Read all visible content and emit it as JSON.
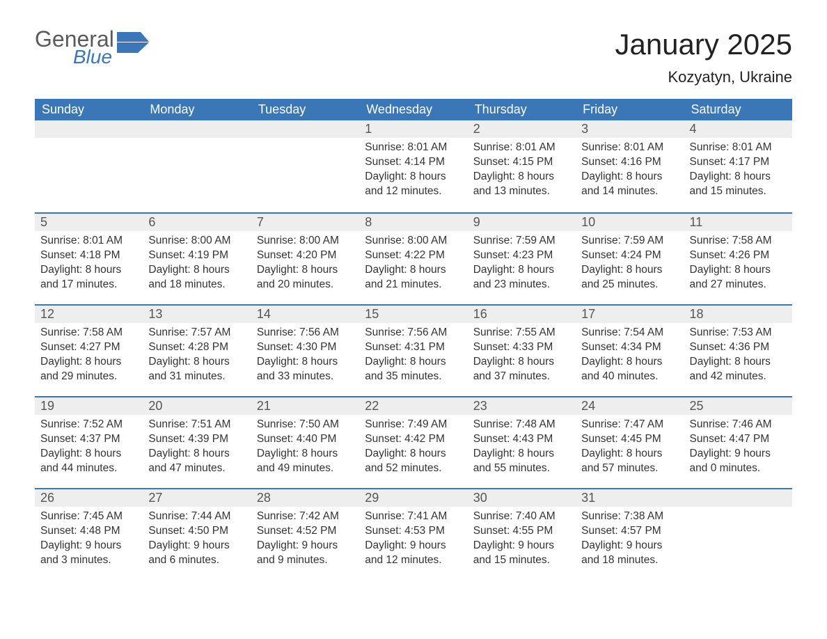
{
  "brand": {
    "word1": "General",
    "word2": "Blue",
    "accent_color": "#3b77b7",
    "text_color": "#5a5a5a"
  },
  "title": "January 2025",
  "location": "Kozyatyn, Ukraine",
  "header_bg": "#3b77b7",
  "header_fg": "#ffffff",
  "daynum_bg": "#eeeeee",
  "border_color": "#3b77b7",
  "body_color": "#333333",
  "dow": [
    "Sunday",
    "Monday",
    "Tuesday",
    "Wednesday",
    "Thursday",
    "Friday",
    "Saturday"
  ],
  "weeks": [
    [
      null,
      null,
      null,
      {
        "n": "1",
        "sunrise": "8:01 AM",
        "sunset": "4:14 PM",
        "dlh": "8",
        "dlm": "12"
      },
      {
        "n": "2",
        "sunrise": "8:01 AM",
        "sunset": "4:15 PM",
        "dlh": "8",
        "dlm": "13"
      },
      {
        "n": "3",
        "sunrise": "8:01 AM",
        "sunset": "4:16 PM",
        "dlh": "8",
        "dlm": "14"
      },
      {
        "n": "4",
        "sunrise": "8:01 AM",
        "sunset": "4:17 PM",
        "dlh": "8",
        "dlm": "15"
      }
    ],
    [
      {
        "n": "5",
        "sunrise": "8:01 AM",
        "sunset": "4:18 PM",
        "dlh": "8",
        "dlm": "17"
      },
      {
        "n": "6",
        "sunrise": "8:00 AM",
        "sunset": "4:19 PM",
        "dlh": "8",
        "dlm": "18"
      },
      {
        "n": "7",
        "sunrise": "8:00 AM",
        "sunset": "4:20 PM",
        "dlh": "8",
        "dlm": "20"
      },
      {
        "n": "8",
        "sunrise": "8:00 AM",
        "sunset": "4:22 PM",
        "dlh": "8",
        "dlm": "21"
      },
      {
        "n": "9",
        "sunrise": "7:59 AM",
        "sunset": "4:23 PM",
        "dlh": "8",
        "dlm": "23"
      },
      {
        "n": "10",
        "sunrise": "7:59 AM",
        "sunset": "4:24 PM",
        "dlh": "8",
        "dlm": "25"
      },
      {
        "n": "11",
        "sunrise": "7:58 AM",
        "sunset": "4:26 PM",
        "dlh": "8",
        "dlm": "27"
      }
    ],
    [
      {
        "n": "12",
        "sunrise": "7:58 AM",
        "sunset": "4:27 PM",
        "dlh": "8",
        "dlm": "29"
      },
      {
        "n": "13",
        "sunrise": "7:57 AM",
        "sunset": "4:28 PM",
        "dlh": "8",
        "dlm": "31"
      },
      {
        "n": "14",
        "sunrise": "7:56 AM",
        "sunset": "4:30 PM",
        "dlh": "8",
        "dlm": "33"
      },
      {
        "n": "15",
        "sunrise": "7:56 AM",
        "sunset": "4:31 PM",
        "dlh": "8",
        "dlm": "35"
      },
      {
        "n": "16",
        "sunrise": "7:55 AM",
        "sunset": "4:33 PM",
        "dlh": "8",
        "dlm": "37"
      },
      {
        "n": "17",
        "sunrise": "7:54 AM",
        "sunset": "4:34 PM",
        "dlh": "8",
        "dlm": "40"
      },
      {
        "n": "18",
        "sunrise": "7:53 AM",
        "sunset": "4:36 PM",
        "dlh": "8",
        "dlm": "42"
      }
    ],
    [
      {
        "n": "19",
        "sunrise": "7:52 AM",
        "sunset": "4:37 PM",
        "dlh": "8",
        "dlm": "44"
      },
      {
        "n": "20",
        "sunrise": "7:51 AM",
        "sunset": "4:39 PM",
        "dlh": "8",
        "dlm": "47"
      },
      {
        "n": "21",
        "sunrise": "7:50 AM",
        "sunset": "4:40 PM",
        "dlh": "8",
        "dlm": "49"
      },
      {
        "n": "22",
        "sunrise": "7:49 AM",
        "sunset": "4:42 PM",
        "dlh": "8",
        "dlm": "52"
      },
      {
        "n": "23",
        "sunrise": "7:48 AM",
        "sunset": "4:43 PM",
        "dlh": "8",
        "dlm": "55"
      },
      {
        "n": "24",
        "sunrise": "7:47 AM",
        "sunset": "4:45 PM",
        "dlh": "8",
        "dlm": "57"
      },
      {
        "n": "25",
        "sunrise": "7:46 AM",
        "sunset": "4:47 PM",
        "dlh": "9",
        "dlm": "0"
      }
    ],
    [
      {
        "n": "26",
        "sunrise": "7:45 AM",
        "sunset": "4:48 PM",
        "dlh": "9",
        "dlm": "3"
      },
      {
        "n": "27",
        "sunrise": "7:44 AM",
        "sunset": "4:50 PM",
        "dlh": "9",
        "dlm": "6"
      },
      {
        "n": "28",
        "sunrise": "7:42 AM",
        "sunset": "4:52 PM",
        "dlh": "9",
        "dlm": "9"
      },
      {
        "n": "29",
        "sunrise": "7:41 AM",
        "sunset": "4:53 PM",
        "dlh": "9",
        "dlm": "12"
      },
      {
        "n": "30",
        "sunrise": "7:40 AM",
        "sunset": "4:55 PM",
        "dlh": "9",
        "dlm": "15"
      },
      {
        "n": "31",
        "sunrise": "7:38 AM",
        "sunset": "4:57 PM",
        "dlh": "9",
        "dlm": "18"
      },
      null
    ]
  ],
  "labels": {
    "sunrise": "Sunrise: ",
    "sunset": "Sunset: ",
    "daylight_pre": "Daylight: ",
    "hours": " hours",
    "and": "and ",
    "minutes": " minutes."
  }
}
